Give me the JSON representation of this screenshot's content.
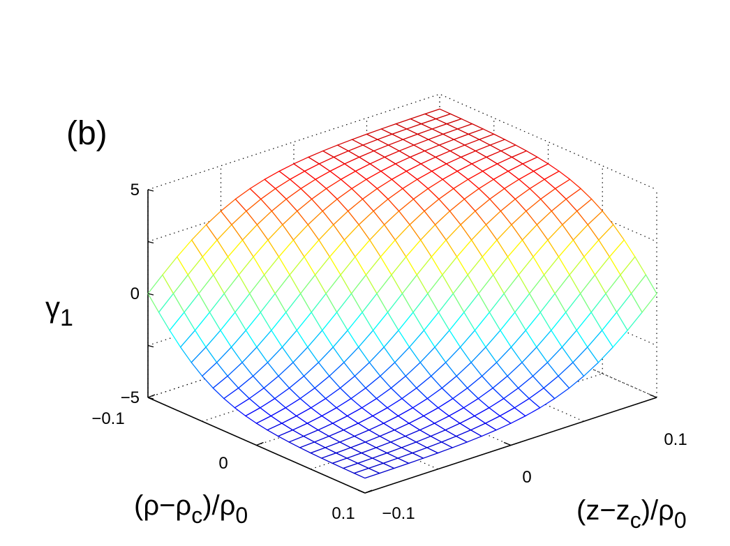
{
  "chart_data": {
    "type": "surface-mesh",
    "panel_label": "(b)",
    "z_axis": {
      "label_base": "γ",
      "label_sub": "1",
      "range": [
        -5,
        5
      ],
      "ticks": [
        {
          "value": 5,
          "label": "5"
        },
        {
          "value": 0,
          "label": "0"
        },
        {
          "value": -5,
          "label": "−5"
        }
      ]
    },
    "rho_axis": {
      "label_a": "(ρ−ρ",
      "label_a_sub": "c",
      "label_b": ")/ρ",
      "label_b_sub": "0",
      "range": [
        -0.1,
        0.1
      ],
      "ticks": [
        {
          "value": -0.1,
          "label": "−0.1"
        },
        {
          "value": 0,
          "label": "0"
        },
        {
          "value": 0.1,
          "label": "0.1"
        }
      ]
    },
    "z_pos_axis": {
      "label_a": "(z−z",
      "label_a_sub": "c",
      "label_b": ")/ρ",
      "label_b_sub": "0",
      "range": [
        -0.1,
        0.1
      ],
      "ticks": [
        {
          "value": -0.1,
          "label": "−0.1"
        },
        {
          "value": 0,
          "label": "0"
        },
        {
          "value": 0.1,
          "label": "0.1"
        }
      ]
    },
    "surface": {
      "description_values": "gamma_1 = 4.3 * tanh(-(u)/0.045), u = ((rho-rho_c) - (z-z_c))/sqrt(2)",
      "grid_points": 21,
      "max": 4.3,
      "min": -4.3,
      "colormap": "jet"
    },
    "grid": true
  }
}
